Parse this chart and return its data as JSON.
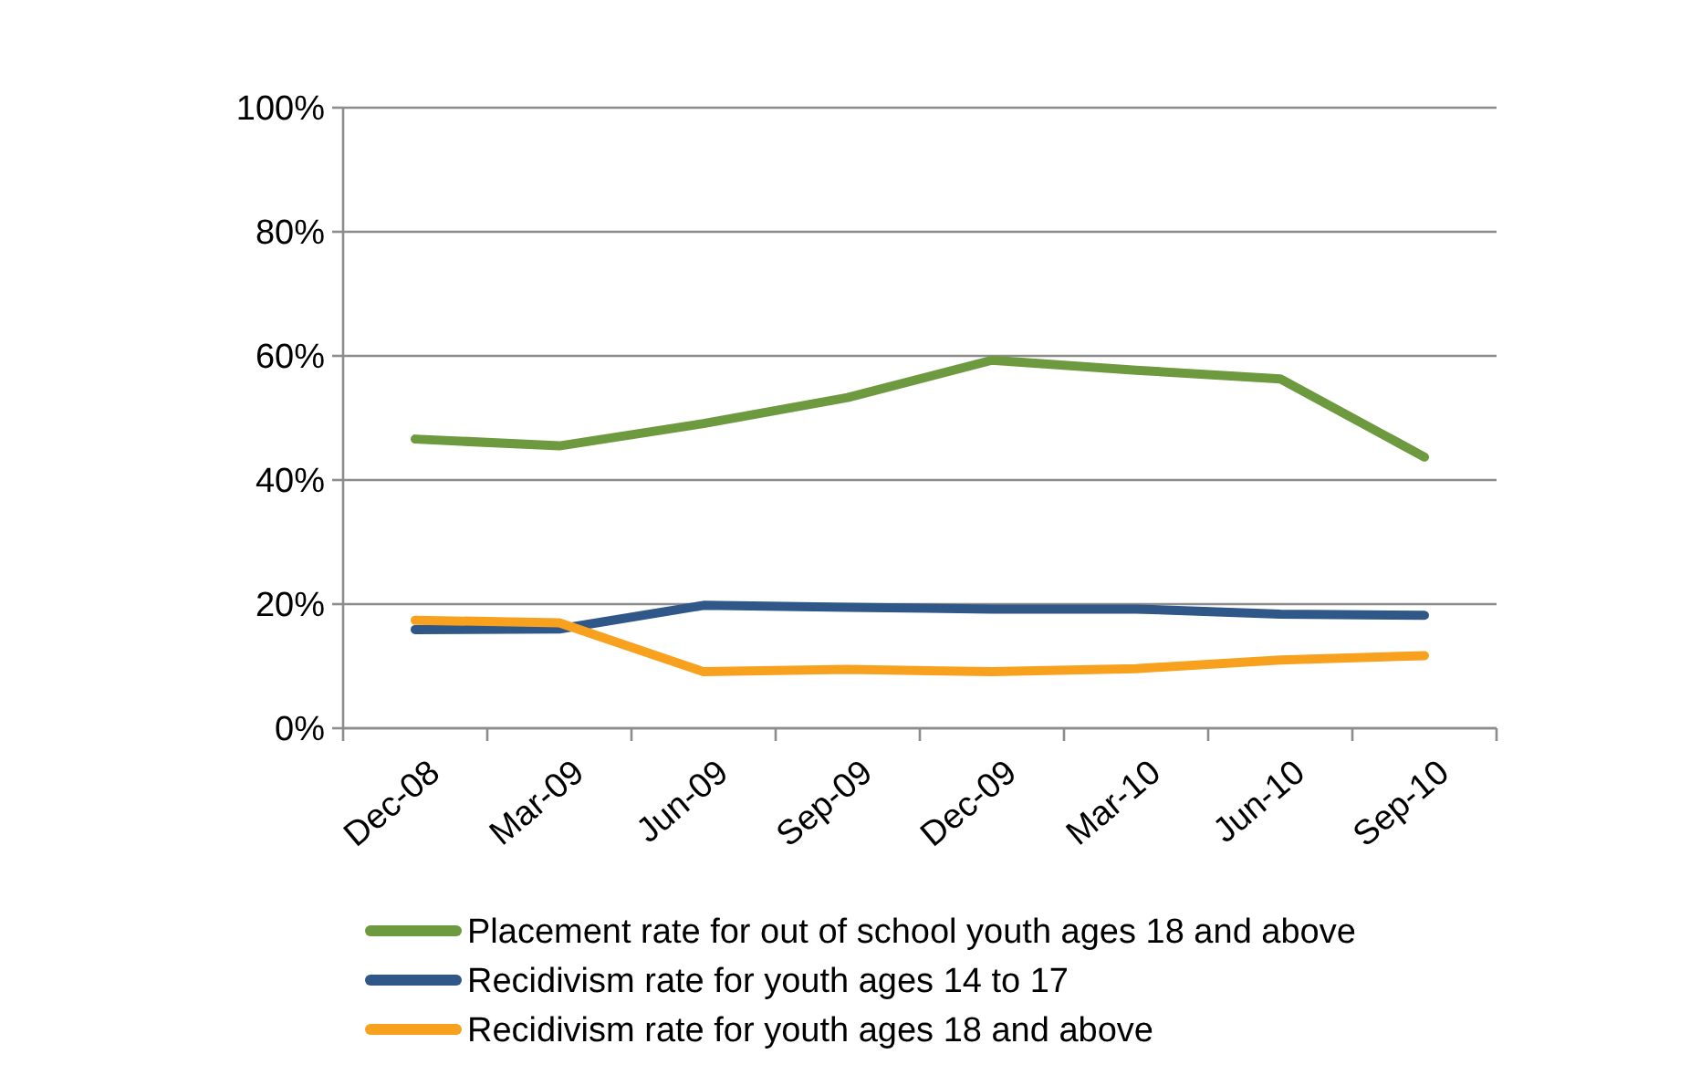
{
  "chart_data": {
    "type": "line",
    "categories": [
      "Dec-08",
      "Mar-09",
      "Jun-09",
      "Sep-09",
      "Dec-09",
      "Mar-10",
      "Jun-10",
      "Sep-10"
    ],
    "series": [
      {
        "name": "Placement rate for out of school youth ages 18 and above",
        "color": "#6e9a3f",
        "values": [
          46.6,
          45.5,
          49.1,
          53.3,
          59.3,
          57.7,
          56.3,
          43.7
        ]
      },
      {
        "name": "Recidivism rate for youth ages 14 to 17",
        "color": "#2f5787",
        "values": [
          15.9,
          16,
          19.8,
          19.5,
          19.2,
          19.2,
          18.4,
          18.2
        ]
      },
      {
        "name": "Recidivism rate for youth ages 18 and above",
        "color": "#f8a11e",
        "values": [
          17.4,
          17,
          9.1,
          9.5,
          9.1,
          9.6,
          11,
          11.7
        ]
      }
    ],
    "ylim": [
      0,
      100
    ],
    "yticks": [
      {
        "value": 0,
        "label": "0%"
      },
      {
        "value": 20,
        "label": "20%"
      },
      {
        "value": 40,
        "label": "40%"
      },
      {
        "value": 60,
        "label": "60%"
      },
      {
        "value": 80,
        "label": "80%"
      },
      {
        "value": 100,
        "label": "100%"
      }
    ],
    "grid": "y",
    "legend": "bottom",
    "marker": "none",
    "line_style": "solid"
  }
}
